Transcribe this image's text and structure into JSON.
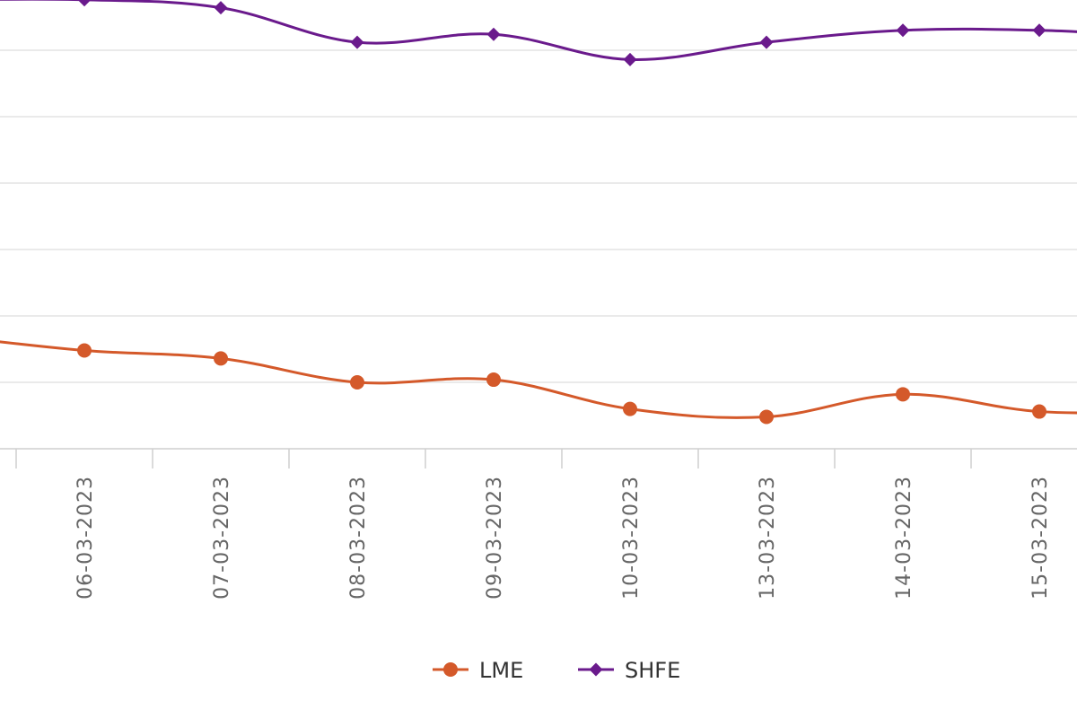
{
  "chart_data": {
    "type": "line",
    "categories": [
      "06-03-2023",
      "07-03-2023",
      "08-03-2023",
      "09-03-2023",
      "10-03-2023",
      "13-03-2023",
      "14-03-2023",
      "15-03-2023"
    ],
    "series": [
      {
        "name": "LME",
        "color": "#d4592a",
        "marker": "circle",
        "values": [
          2324,
          2318,
          2300,
          2302,
          2280,
          2274,
          2291,
          2278
        ]
      },
      {
        "name": "SHFE",
        "color": "#6a1a8c",
        "marker": "diamond",
        "values": [
          2588,
          2582,
          2556,
          2562,
          2543,
          2556,
          2565,
          2565
        ]
      }
    ],
    "ylim": [
      2250,
      2650
    ],
    "y_gridlines": [
      2250,
      2300,
      2350,
      2400,
      2450,
      2500,
      2550,
      2600,
      2650
    ],
    "grid": true,
    "legend": "bottom-center",
    "x_label_rotation": "vertical"
  }
}
